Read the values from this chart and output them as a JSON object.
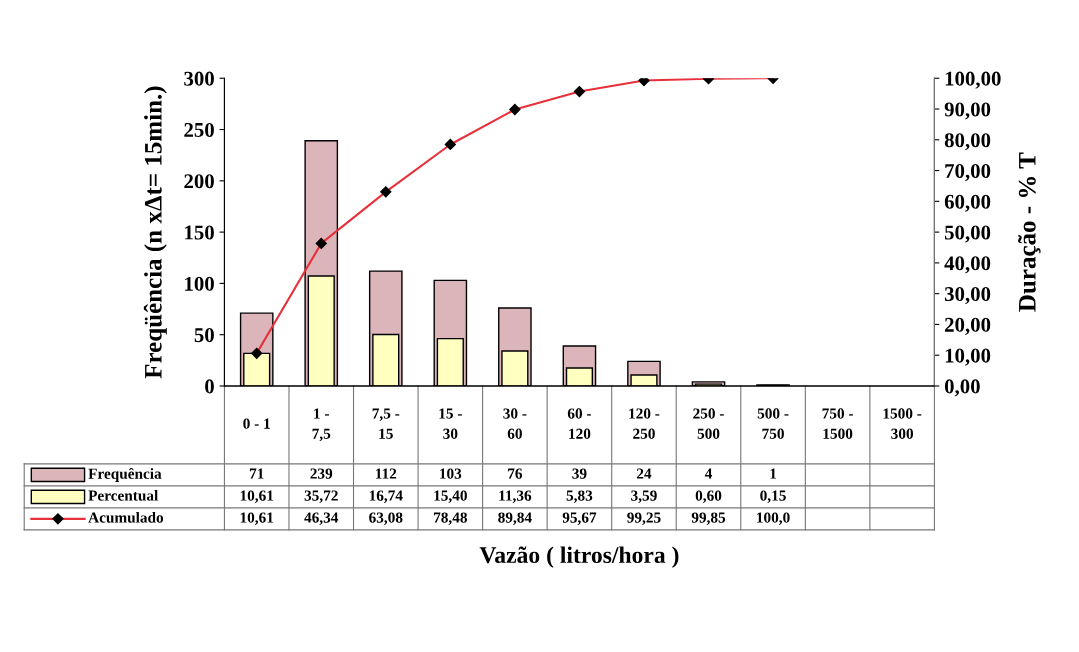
{
  "chart_data": {
    "type": "bar",
    "categories": [
      "0 - 1",
      "1 - 7,5",
      "7,5 - 15",
      "15 - 30",
      "30 - 60",
      "60 - 120",
      "120 - 250",
      "250 - 500",
      "500 - 750",
      "750 - 1500",
      "1500 - 300"
    ],
    "series": [
      {
        "name": "Frequência",
        "color": "#dbb5ba",
        "values": [
          71,
          239,
          112,
          103,
          76,
          39,
          24,
          4,
          1,
          null,
          null
        ],
        "value_labels": [
          "71",
          "239",
          "112",
          "103",
          "76",
          "39",
          "24",
          "4",
          "1",
          null,
          null
        ]
      },
      {
        "name": "Percentual",
        "axis": "y2",
        "color": "#ffffc0",
        "values": [
          10.61,
          35.72,
          16.74,
          15.4,
          11.36,
          5.83,
          3.59,
          0.6,
          0.15,
          null,
          null
        ],
        "value_labels": [
          "10,61",
          "35,72",
          "16,74",
          "15,40",
          "11,36",
          "5,83",
          "3,59",
          "0,60",
          "0,15",
          null,
          null
        ]
      },
      {
        "name": "Acumulado",
        "type": "line",
        "axis": "y2",
        "color": "#e8303a",
        "values": [
          10.61,
          46.34,
          63.08,
          78.48,
          89.84,
          95.67,
          99.25,
          99.85,
          100.0,
          null,
          null
        ],
        "value_labels": [
          "10,61",
          "46,34",
          "63,08",
          "78,48",
          "89,84",
          "95,67",
          "99,25",
          "99,85",
          "100,0",
          null,
          null
        ]
      }
    ],
    "marker": "diamond",
    "xlabel": "Vazão ( litros/hora )",
    "ylabel": "Freqüência (n xΔt= 15min.)",
    "y2label": "Duração - % T",
    "ylim": [
      0,
      300
    ],
    "yticks": [
      0,
      50,
      100,
      150,
      200,
      250,
      300
    ],
    "y2lim": [
      0,
      100
    ],
    "y2ticks": [
      {
        "value": 0,
        "label": "0,00"
      },
      {
        "value": 10,
        "label": "10,00"
      },
      {
        "value": 20,
        "label": "20,00"
      },
      {
        "value": 30,
        "label": "30,00"
      },
      {
        "value": 40,
        "label": "40,00"
      },
      {
        "value": 50,
        "label": "50,00"
      },
      {
        "value": 60,
        "label": "60,00"
      },
      {
        "value": 70,
        "label": "70,00"
      },
      {
        "value": 80,
        "label": "80,00"
      },
      {
        "value": 90,
        "label": "90,00"
      },
      {
        "value": 100,
        "label": "100,00"
      }
    ],
    "legend": "bottom",
    "grid": false
  }
}
